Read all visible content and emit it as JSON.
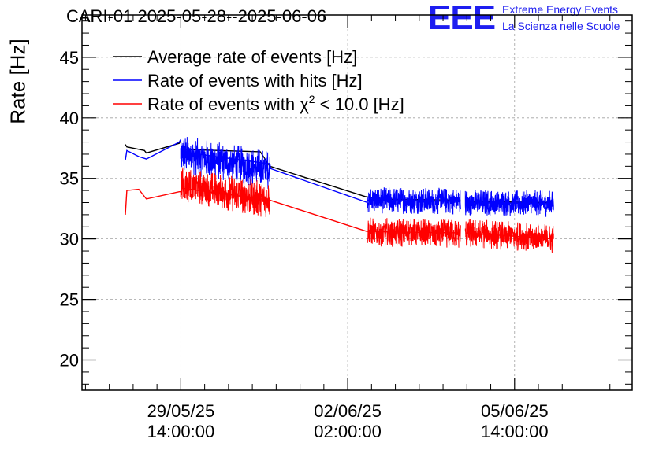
{
  "header": {
    "title": "CARI-01 2025-05-28--2025-06-06",
    "logo_mark": "EEE",
    "logo_line1": "Extreme Energy Events",
    "logo_line2": "La Scienza nelle Scuole"
  },
  "chart_data": {
    "type": "line",
    "ylabel": "Rate [Hz]",
    "ylim": [
      17.5,
      48.5
    ],
    "yticks": [
      "20",
      "25",
      "30",
      "35",
      "40",
      "45"
    ],
    "xticks": [
      {
        "date": "29/05/25",
        "time": "14:00:00",
        "day": 1.583
      },
      {
        "date": "02/06/25",
        "time": "02:00:00",
        "day": 5.083
      },
      {
        "date": "05/06/25",
        "time": "14:00:00",
        "day": 8.583
      }
    ],
    "xlim": [
      -0.49,
      11.05
    ],
    "grid": true,
    "legend_position": "top-left",
    "series": [
      {
        "name": "Average rate of events [Hz]",
        "color": "#000000",
        "segments": [
          [
            [
              0.42,
              37.8
            ],
            [
              0.45,
              37.6
            ],
            [
              0.7,
              37.4
            ],
            [
              0.82,
              37.3
            ],
            [
              0.86,
              37.1
            ],
            [
              1.55,
              37.9
            ],
            [
              1.58,
              38.1
            ]
          ],
          [
            [
              1.58,
              37.4
            ],
            [
              3.25,
              37.2
            ],
            [
              3.45,
              36.0
            ],
            [
              5.45,
              33.5
            ],
            [
              5.6,
              33.4
            ]
          ],
          [
            [
              5.6,
              33.3
            ],
            [
              7.45,
              33.2
            ]
          ],
          [
            [
              7.55,
              33.1
            ],
            [
              9.4,
              33.0
            ]
          ]
        ]
      },
      {
        "name": "Rate of events with hits [Hz]",
        "color": "#0000ff",
        "noise": 1.3,
        "segments": [
          [
            [
              0.42,
              36.5
            ],
            [
              0.45,
              37.3
            ],
            [
              0.7,
              36.8
            ],
            [
              0.86,
              36.6
            ],
            [
              1.55,
              38.0
            ],
            [
              1.58,
              38.2
            ]
          ],
          [
            [
              1.58,
              37.2
            ],
            [
              3.45,
              36.2
            ],
            [
              3.47,
              35.8
            ],
            [
              5.5,
              33.0
            ]
          ],
          [
            [
              5.5,
              33.2
            ],
            [
              7.45,
              33.1
            ]
          ],
          [
            [
              7.55,
              33.0
            ],
            [
              9.4,
              32.9
            ]
          ]
        ],
        "bands": [
          {
            "x": [
              1.58,
              3.45
            ],
            "y": [
              37.0,
              35.7
            ],
            "amp": 1.6
          },
          {
            "x": [
              5.5,
              7.45
            ],
            "y": [
              33.2,
              33.1
            ],
            "amp": 1.1
          },
          {
            "x": [
              7.55,
              9.4
            ],
            "y": [
              33.0,
              32.9
            ],
            "amp": 1.1
          }
        ]
      },
      {
        "name": "Rate of events with χ² < 10.0 [Hz]",
        "color": "#ff0000",
        "segments": [
          [
            [
              0.42,
              32.0
            ],
            [
              0.45,
              34.0
            ],
            [
              0.7,
              34.1
            ],
            [
              0.86,
              33.3
            ],
            [
              1.55,
              33.9
            ],
            [
              1.58,
              33.9
            ]
          ],
          [
            [
              1.58,
              34.2
            ],
            [
              3.45,
              33.2
            ],
            [
              5.5,
              30.6
            ]
          ],
          [
            [
              5.5,
              30.6
            ],
            [
              7.45,
              30.5
            ]
          ],
          [
            [
              7.55,
              30.5
            ],
            [
              9.4,
              30.0
            ]
          ]
        ],
        "bands": [
          {
            "x": [
              1.58,
              3.45
            ],
            "y": [
              34.5,
              33.2
            ],
            "amp": 1.5
          },
          {
            "x": [
              5.5,
              7.45
            ],
            "y": [
              30.6,
              30.4
            ],
            "amp": 1.2
          },
          {
            "x": [
              7.55,
              9.4
            ],
            "y": [
              30.5,
              30.0
            ],
            "amp": 1.2
          }
        ]
      }
    ],
    "legend": [
      {
        "label_prefix": "Average rate of events [Hz]",
        "color": "#000000"
      },
      {
        "label_prefix": "Rate of events with hits [Hz]",
        "color": "#0000ff"
      },
      {
        "label_prefix": "Rate of events with χ",
        "superscript": "2",
        "label_suffix": " < 10.0 [Hz]",
        "color": "#ff0000"
      }
    ]
  }
}
